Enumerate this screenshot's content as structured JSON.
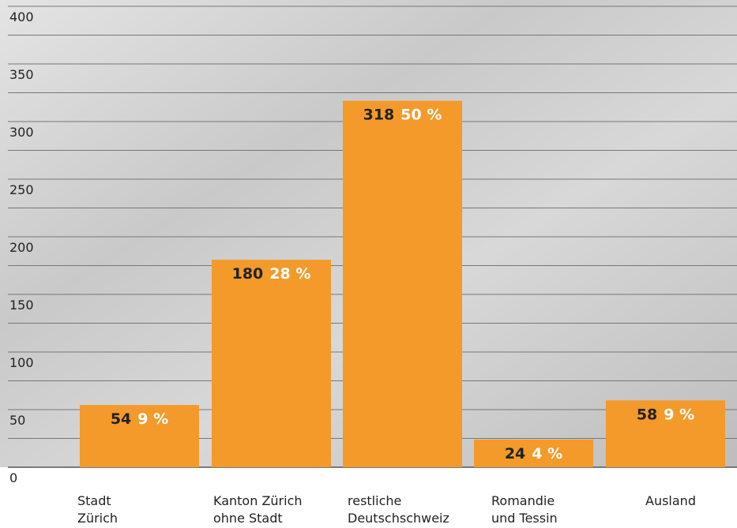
{
  "chart_data": {
    "type": "bar",
    "categories": [
      [
        "Stadt",
        "Zürich"
      ],
      [
        "Kanton Zürich",
        "ohne Stadt"
      ],
      [
        "restliche",
        "Deutschschweiz"
      ],
      [
        "Romandie",
        "und Tessin"
      ],
      [
        "Ausland"
      ]
    ],
    "values": [
      54,
      180,
      318,
      24,
      58
    ],
    "percent_labels": [
      "9 %",
      "28 %",
      "50 %",
      "4 %",
      "9 %"
    ],
    "color": "#f39a2b",
    "ylim": [
      0,
      400
    ],
    "yticks": [
      0,
      50,
      100,
      150,
      200,
      250,
      300,
      350,
      400
    ],
    "minor_yticks": [
      25,
      75,
      125,
      175,
      225,
      275,
      325,
      375
    ],
    "grid": true
  }
}
